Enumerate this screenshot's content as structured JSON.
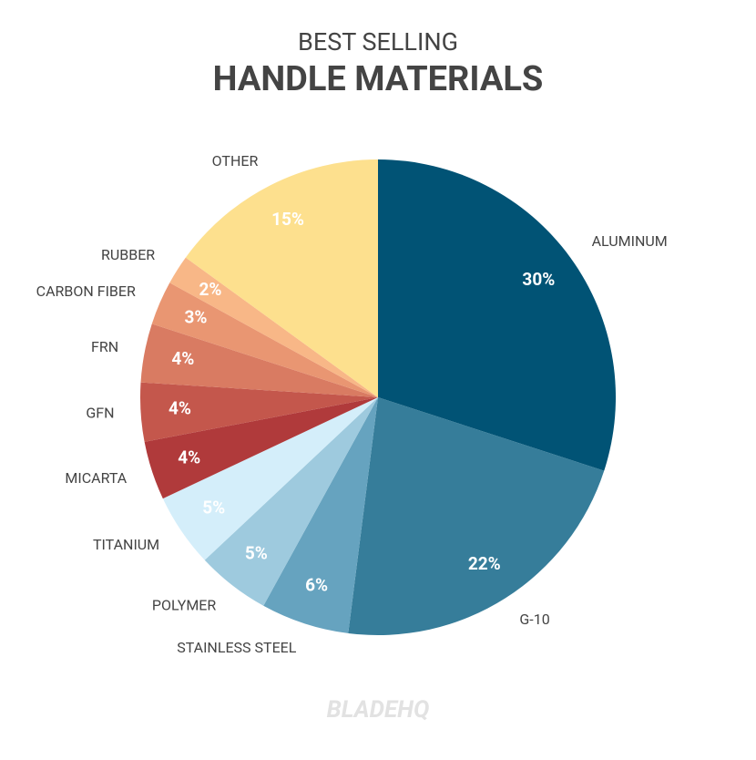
{
  "chart_data": {
    "type": "pie",
    "title": "BEST SELLING",
    "subtitle": "HANDLE MATERIALS",
    "categories": [
      "ALUMINUM",
      "G-10",
      "STAINLESS STEEL",
      "POLYMER",
      "TITANIUM",
      "MICARTA",
      "GFN",
      "FRN",
      "CARBON FIBER",
      "RUBBER",
      "OTHER"
    ],
    "values": [
      30,
      22,
      6,
      5,
      5,
      4,
      4,
      4,
      3,
      2,
      15
    ],
    "value_labels": [
      "30%",
      "22%",
      "6%",
      "5%",
      "5%",
      "4%",
      "4%",
      "4%",
      "3%",
      "2%",
      "15%"
    ],
    "colors": [
      "#015375",
      "#367d9a",
      "#66a3bf",
      "#9ecade",
      "#d4eefa",
      "#b03a3b",
      "#c4574c",
      "#d97b62",
      "#e99672",
      "#f8b787",
      "#fde08e"
    ],
    "watermark": "BLADEHQ"
  }
}
